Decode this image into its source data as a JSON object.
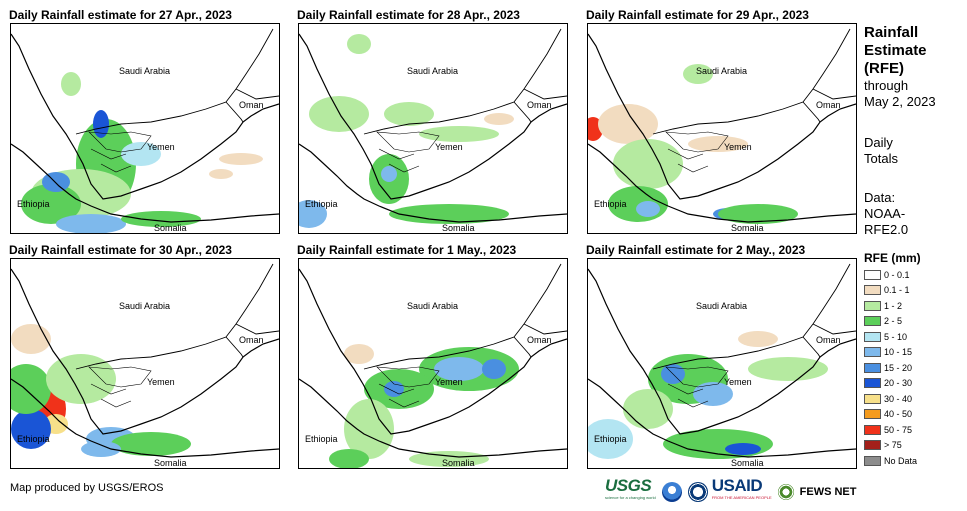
{
  "panels": [
    {
      "title": "Daily Rainfall estimate for 27 Apr., 2023"
    },
    {
      "title": "Daily Rainfall estimate for 28 Apr., 2023"
    },
    {
      "title": "Daily Rainfall estimate for 29 Apr., 2023"
    },
    {
      "title": "Daily Rainfall estimate for 30 Apr., 2023"
    },
    {
      "title": "Daily Rainfall estimate for 1 May., 2023"
    },
    {
      "title": "Daily Rainfall estimate for 2 May., 2023"
    }
  ],
  "map_labels": {
    "saudi": "Saudi Arabia",
    "oman": "Oman",
    "yemen": "Yemen",
    "ethiopia": "Ethiopia",
    "somalia": "Somalia"
  },
  "sidebar": {
    "title_line1": "Rainfall",
    "title_line2": "Estimate",
    "title_line3": "(RFE)",
    "through": "through",
    "date": "May 2, 2023",
    "daily": "Daily",
    "totals": "Totals",
    "data_label": "Data:",
    "data_src1": "NOAA-",
    "data_src2": "RFE2.0"
  },
  "legend": {
    "title": "RFE (mm)",
    "items": [
      {
        "label": "0 - 0.1",
        "color": "#ffffff"
      },
      {
        "label": "0.1 - 1",
        "color": "#f2dcc0"
      },
      {
        "label": "1 - 2",
        "color": "#b5eaa0"
      },
      {
        "label": "2 - 5",
        "color": "#5ccf5a"
      },
      {
        "label": "5 - 10",
        "color": "#b3e5f2"
      },
      {
        "label": "10 - 15",
        "color": "#7eb9ec"
      },
      {
        "label": "15 - 20",
        "color": "#4a8fe0"
      },
      {
        "label": "20 - 30",
        "color": "#1a55d6"
      },
      {
        "label": "30 - 40",
        "color": "#f7e08a"
      },
      {
        "label": "40 - 50",
        "color": "#f59b1d"
      },
      {
        "label": "50 - 75",
        "color": "#f0321a"
      },
      {
        "label": "> 75",
        "color": "#a3201a"
      },
      {
        "label": "No Data",
        "color": "#8c8c8c"
      }
    ]
  },
  "footer": {
    "credit": "Map produced by USGS/EROS"
  },
  "logos": {
    "usgs": "USGS",
    "usgs_tagline": "science for a changing world",
    "usaid": "USAID",
    "usaid_tagline": "FROM THE AMERICAN PEOPLE",
    "fews": "FEWS NET"
  }
}
